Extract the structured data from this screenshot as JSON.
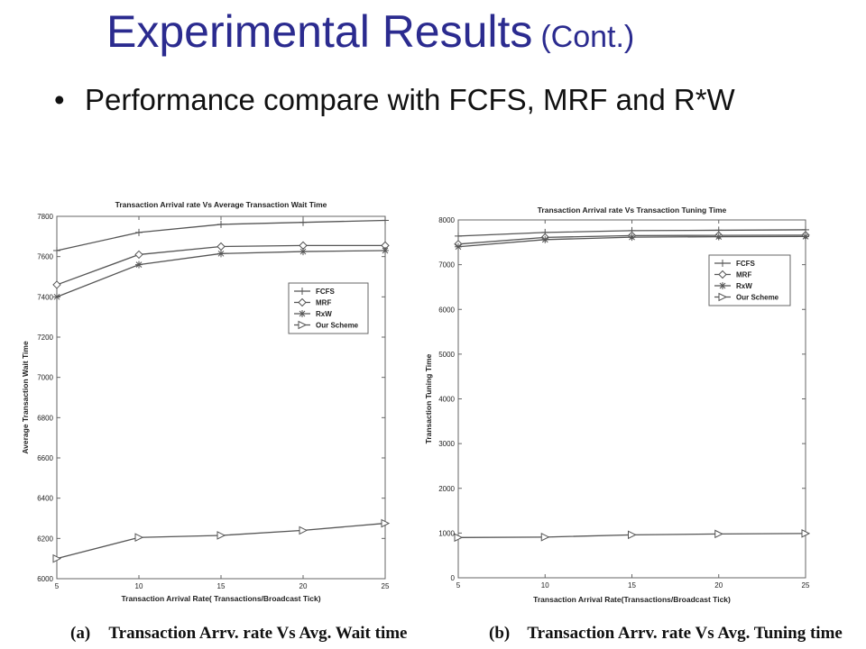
{
  "slide": {
    "title_main": "Experimental Results",
    "title_sub": "(Cont.)",
    "bullet_symbol": "•",
    "bullet_text": "Performance compare with FCFS, MRF and R*W"
  },
  "captions": {
    "a_tag": "(a)",
    "a_text": "Transaction Arrv. rate Vs Avg. Wait time",
    "b_tag": "(b)",
    "b_text": "Transaction Arrv. rate Vs Avg. Tuning time"
  },
  "chart_data": [
    {
      "type": "line",
      "title": "Transaction Arrival rate Vs Average Transaction Wait Time",
      "xlabel": "Transaction Arrival Rate( Transactions/Broadcast Tick)",
      "ylabel": "Average Transaction Wait Time",
      "x": [
        5,
        10,
        15,
        20,
        25
      ],
      "xlim": [
        5,
        25
      ],
      "ylim": [
        6000,
        7800
      ],
      "xticks": [
        5,
        10,
        15,
        20,
        25
      ],
      "yticks": [
        6000,
        6200,
        6400,
        6600,
        6800,
        7000,
        7200,
        7400,
        7600,
        7800
      ],
      "grid": false,
      "legend_position": "right",
      "line_color": "#555555",
      "series": [
        {
          "name": "FCFS",
          "marker": "plus",
          "values": [
            7630,
            7720,
            7760,
            7770,
            7780
          ]
        },
        {
          "name": "MRF",
          "marker": "diamond",
          "values": [
            7460,
            7610,
            7650,
            7655,
            7655
          ]
        },
        {
          "name": "RxW",
          "marker": "star",
          "values": [
            7400,
            7560,
            7615,
            7625,
            7630
          ]
        },
        {
          "name": "Our Scheme",
          "marker": "triangle",
          "values": [
            6100,
            6205,
            6215,
            6240,
            6275
          ]
        }
      ]
    },
    {
      "type": "line",
      "title": "Transaction Arrival rate Vs Transaction Tuning Time",
      "xlabel": "Transaction Arrival Rate(Transactions/Broadcast Tick)",
      "ylabel": "Transaction Tuning Time",
      "x": [
        5,
        10,
        15,
        20,
        25
      ],
      "xlim": [
        5,
        25
      ],
      "ylim": [
        0,
        8000
      ],
      "xticks": [
        5,
        10,
        15,
        20,
        25
      ],
      "yticks": [
        0,
        1000,
        2000,
        3000,
        4000,
        5000,
        6000,
        7000,
        8000
      ],
      "grid": false,
      "legend_position": "top-right",
      "line_color": "#555555",
      "series": [
        {
          "name": "FCFS",
          "marker": "plus",
          "values": [
            7640,
            7720,
            7760,
            7770,
            7780
          ]
        },
        {
          "name": "MRF",
          "marker": "diamond",
          "values": [
            7460,
            7610,
            7650,
            7655,
            7660
          ]
        },
        {
          "name": "RxW",
          "marker": "star",
          "values": [
            7400,
            7560,
            7615,
            7625,
            7630
          ]
        },
        {
          "name": "Our Scheme",
          "marker": "triangle",
          "values": [
            900,
            910,
            960,
            980,
            990
          ]
        }
      ]
    }
  ]
}
